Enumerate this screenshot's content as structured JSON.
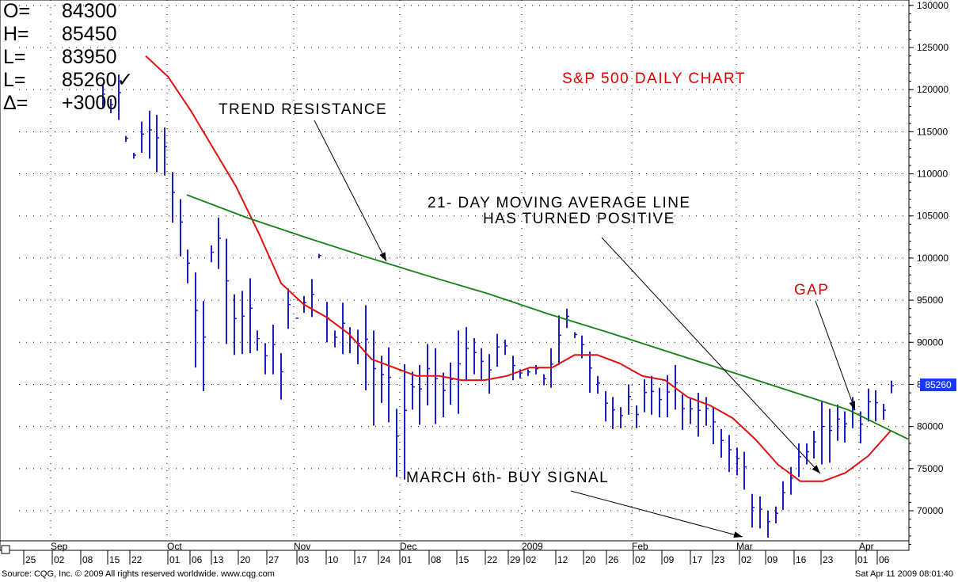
{
  "ohlc_box": [
    {
      "key": "O=",
      "value": "84300"
    },
    {
      "key": "H=",
      "value": "85450"
    },
    {
      "key": "L=",
      "value": "83950"
    },
    {
      "key": "L=",
      "value": "85260✓"
    },
    {
      "key": "Δ=",
      "value": "+3000"
    }
  ],
  "annotations": {
    "trend_resistance": "TREND RESISTANCE",
    "ma_line1": "21- DAY MOVING AVERAGE LINE",
    "ma_line2": "HAS TURNED POSITIVE",
    "gap": "GAP",
    "buy_signal": "MARCH 6th- BUY SIGNAL"
  },
  "footer": {
    "source": "Source: CQG, Inc. © 2009 All rights reserved worldwide. www.cqg.com",
    "timestamp": "Sat Apr 11 2009 08:01:40"
  },
  "last_price_label": "85260",
  "colors": {
    "bars": "#1e1ec8",
    "moving_average": "#e01010",
    "trendline": "#138013",
    "title": "#e00000",
    "price_badge": "#1838ff"
  },
  "chart_data": {
    "type": "ohlc-bar",
    "title": "S&P 500 DAILY CHART",
    "ylim": [
      65000,
      132000
    ],
    "y_ticks": [
      70000,
      75000,
      80000,
      85000,
      90000,
      95000,
      100000,
      105000,
      110000,
      115000,
      120000,
      125000,
      130000
    ],
    "x_ticks": [
      "25",
      "02",
      "08",
      "15",
      "22",
      "01",
      "06",
      "13",
      "20",
      "27",
      "03",
      "10",
      "17",
      "24",
      "01",
      "08",
      "15",
      "22",
      "29",
      "02",
      "12",
      "20",
      "26",
      "02",
      "09",
      "17",
      "23",
      "02",
      "09",
      "16",
      "23",
      "01",
      "06"
    ],
    "month_labels": [
      "Sep",
      "Oct",
      "Nov",
      "Dec",
      "2009",
      "Feb",
      "Mar",
      "Apr"
    ],
    "grid": true,
    "series": [
      {
        "name": "S&P 500",
        "kind": "ohlc",
        "values": [
          [
            120500,
            117900
          ],
          [
            118900,
            117200
          ],
          [
            121800,
            116400
          ],
          [
            114500,
            113800
          ],
          [
            112500,
            111800
          ],
          [
            116200,
            112500
          ],
          [
            117500,
            111800
          ],
          [
            117000,
            110200
          ],
          [
            115500,
            109800
          ],
          [
            110200,
            104200
          ],
          [
            107000,
            100200
          ],
          [
            101000,
            97000
          ],
          [
            98300,
            87000
          ],
          [
            94900,
            84200
          ],
          [
            101500,
            99500
          ],
          [
            104800,
            98700
          ],
          [
            102300,
            89800
          ],
          [
            95700,
            88500
          ],
          [
            96100,
            88600
          ],
          [
            97600,
            88700
          ],
          [
            91400,
            89000
          ],
          [
            89900,
            86200
          ],
          [
            92100,
            86200
          ],
          [
            88700,
            83200
          ],
          [
            96400,
            91600
          ],
          [
            92900,
            92800
          ],
          [
            95500,
            93500
          ],
          [
            97500,
            93000
          ],
          [
            100500,
            100000
          ],
          [
            94800,
            90000
          ],
          [
            91400,
            89400
          ],
          [
            94700,
            88600
          ],
          [
            91800,
            88700
          ],
          [
            91500,
            87400
          ],
          [
            94400,
            84300
          ],
          [
            91400,
            80100
          ],
          [
            88400,
            82800
          ],
          [
            89400,
            80500
          ],
          [
            82100,
            74000
          ],
          [
            87400,
            73700
          ],
          [
            86500,
            82000
          ],
          [
            87300,
            80200
          ],
          [
            89800,
            82500
          ],
          [
            89300,
            80300
          ],
          [
            86400,
            81100
          ],
          [
            87600,
            82600
          ],
          [
            91400,
            81500
          ],
          [
            91800,
            85500
          ],
          [
            90500,
            86200
          ],
          [
            89300,
            85400
          ],
          [
            88600,
            83900
          ],
          [
            91000,
            87100
          ],
          [
            90300,
            88500
          ],
          [
            88400,
            85500
          ],
          [
            86800,
            85700
          ],
          [
            86800,
            86000
          ],
          [
            87300,
            86200
          ],
          [
            86200,
            84900
          ],
          [
            89300,
            84600
          ],
          [
            93200,
            87300
          ],
          [
            94000,
            91700
          ],
          [
            91200,
            90500
          ],
          [
            90800,
            88100
          ],
          [
            88900,
            84000
          ],
          [
            86000,
            83900
          ],
          [
            84200,
            80600
          ],
          [
            83500,
            79700
          ],
          [
            82300,
            79800
          ],
          [
            85000,
            81400
          ],
          [
            82500,
            79800
          ],
          [
            85600,
            81700
          ],
          [
            86000,
            81400
          ],
          [
            84600,
            81100
          ],
          [
            86100,
            81100
          ],
          [
            87300,
            82000
          ],
          [
            83800,
            79600
          ],
          [
            83300,
            80300
          ],
          [
            84000,
            78800
          ],
          [
            83500,
            80100
          ],
          [
            82300,
            77900
          ],
          [
            79700,
            76300
          ],
          [
            79000,
            74600
          ],
          [
            77500,
            74200
          ],
          [
            77000,
            72500
          ],
          [
            72000,
            68000
          ],
          [
            71700,
            67900
          ],
          [
            70000,
            66800
          ],
          [
            70500,
            68500
          ],
          [
            73500,
            70100
          ],
          [
            75200,
            71900
          ],
          [
            78000,
            74000
          ],
          [
            78000,
            75500
          ],
          [
            79500,
            76200
          ],
          [
            83000,
            75500
          ],
          [
            82100,
            75700
          ],
          [
            82600,
            78300
          ],
          [
            81800,
            78100
          ],
          [
            83500,
            79800
          ],
          [
            81800,
            78000
          ],
          [
            84500,
            80600
          ],
          [
            84300,
            80600
          ],
          [
            82700,
            80800
          ],
          [
            85450,
            83950
          ]
        ]
      },
      {
        "name": "21-day moving average",
        "kind": "line",
        "values": [
          124000,
          121500,
          117500,
          113000,
          108500,
          103000,
          97000,
          94500,
          93000,
          91000,
          88000,
          87000,
          86000,
          86000,
          85500,
          85500,
          86000,
          87000,
          87000,
          88500,
          88500,
          87500,
          86000,
          85500,
          83500,
          82500,
          81000,
          78500,
          75500,
          73500,
          73500,
          74500,
          76500,
          79500
        ]
      },
      {
        "name": "Trend resistance",
        "kind": "line",
        "values": [
          107500,
          104800,
          102400,
          100100,
          97900,
          95800,
          93400,
          91200,
          88900,
          86600,
          84300,
          82000,
          78500
        ]
      }
    ]
  }
}
